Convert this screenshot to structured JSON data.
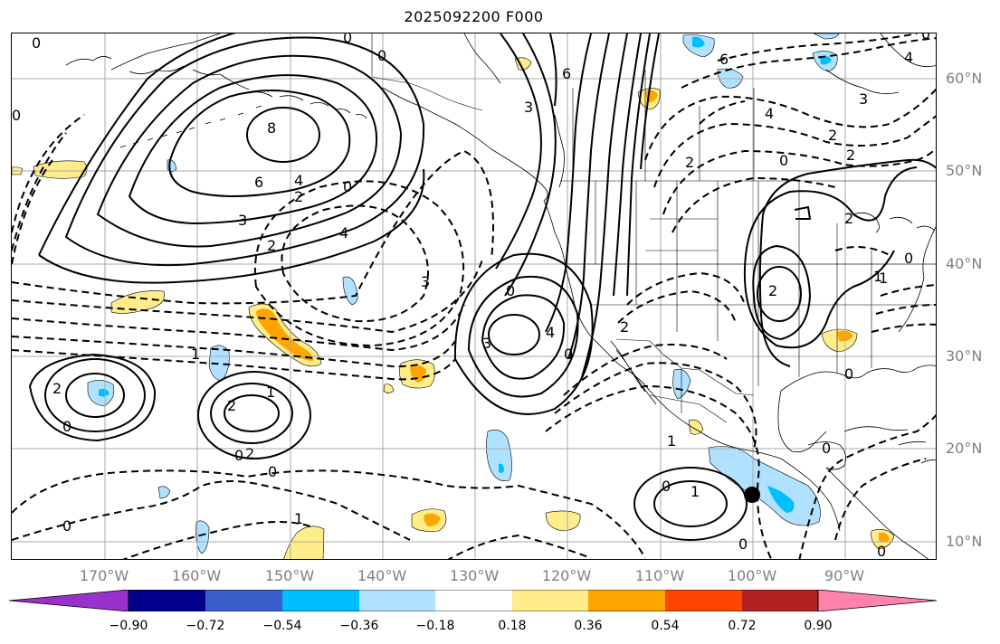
{
  "title": "2025092200 F000",
  "lat_labels": [
    "60°N",
    "50°N",
    "40°N",
    "30°N",
    "20°N",
    "10°N"
  ],
  "lon_labels": [
    "170°W",
    "160°W",
    "150°W",
    "140°W",
    "130°W",
    "120°W",
    "110°W",
    "100°W",
    "90°W"
  ],
  "colorbar": {
    "ticks": [
      "−0.90",
      "−0.72",
      "−0.54",
      "−0.36",
      "−0.18",
      "0.18",
      "0.36",
      "0.54",
      "0.72",
      "0.90"
    ],
    "colors": [
      "#9932cc",
      "#00008b",
      "#3a5fcd",
      "#00bfff",
      "#b0e2ff",
      "#ffffff",
      "#ffec8b",
      "#ffa500",
      "#ff4500",
      "#b22222",
      "#ff82ab"
    ]
  },
  "contour_labels": [
    "0",
    "0",
    "8",
    "6",
    "4",
    "3",
    "2",
    "2",
    "0",
    "0",
    "4",
    "3",
    "0",
    "6",
    "6",
    "3",
    "2",
    "4",
    "2",
    "0",
    "2",
    "2",
    "1",
    "3",
    "4",
    "4",
    "3",
    "1",
    "2",
    "2",
    "1",
    "2",
    "0",
    "0",
    "0",
    "0",
    "1",
    "0",
    "0",
    "1",
    "1",
    "0",
    "0",
    "2",
    "1",
    "2",
    "0",
    "0",
    "0",
    "0",
    "0"
  ],
  "markers": [
    {
      "name": "storm-center",
      "lat": 15,
      "lon": -100
    }
  ]
}
